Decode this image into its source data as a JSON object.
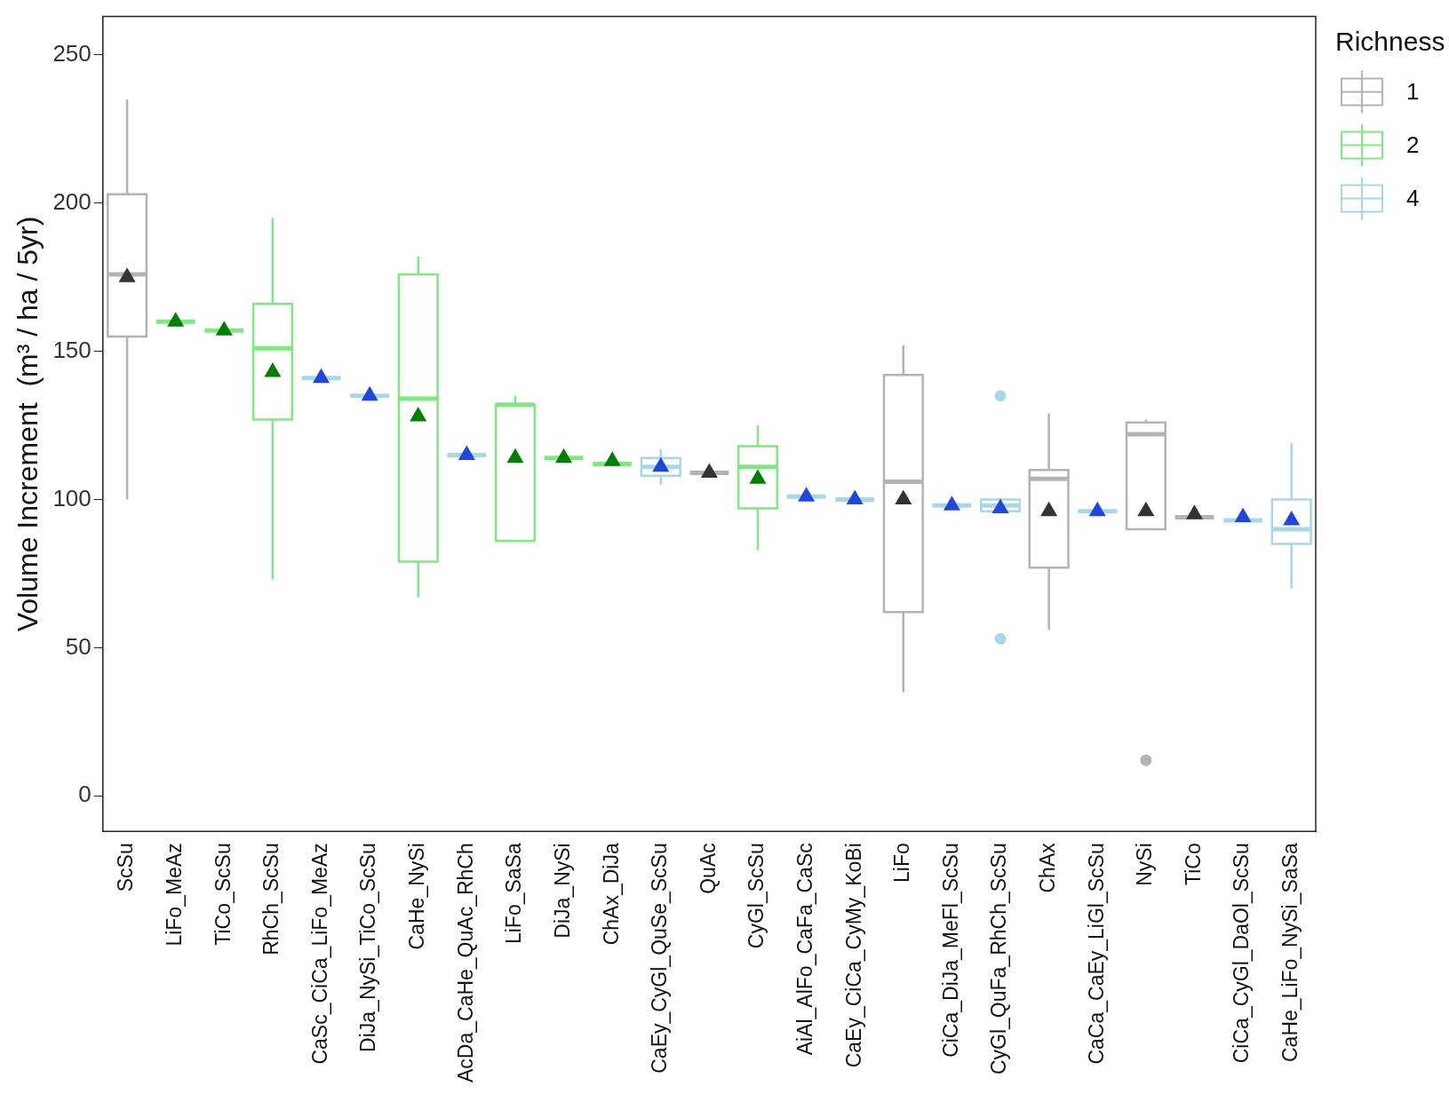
{
  "chart_data": {
    "type": "box",
    "ylabel": "Volume Increment  (m³ / ha / 5yr)",
    "legend_title": "Richness",
    "legend": "top right",
    "grid": false,
    "categories": [
      "ScSu",
      "LiFo_MeAz",
      "TiCo_ScSu",
      "RhCh_ScSu",
      "CaSc_CiCa_LiFo_MeAz",
      "DiJa_NySi_TiCo_ScSu",
      "CaHe_NySi",
      "AcDa_CaHe_QuAc_RhCh",
      "LiFo_SaSa",
      "DiJa_NySi",
      "ChAx_DiJa",
      "CaEy_CyGl_QuSe_ScSu",
      "QuAc",
      "CyGl_ScSu",
      "AiAl_AlFo_CaFa_CaSc",
      "CaEy_CiCa_CyMy_KoBi",
      "LiFo",
      "CiCa_DiJa_MeFl_ScSu",
      "CyGl_QuFa_RhCh_ScSu",
      "ChAx",
      "CaCa_CaEy_LiGl_ScSu",
      "NySi",
      "TiCo",
      "CiCa_CyGl_DaOl_ScSu",
      "CaHe_LiFo_NySi_SaSa"
    ],
    "ylim": [
      -12,
      263
    ],
    "yticks": [
      0,
      50,
      100,
      150,
      200,
      250
    ],
    "series": [
      {
        "name": "1",
        "color": "#b3b3b3",
        "boxes": [
          {
            "low": 100,
            "q1": 155,
            "median": 176,
            "q3": 203,
            "high": 235
          },
          null,
          null,
          null,
          null,
          null,
          null,
          null,
          null,
          null,
          null,
          null,
          {
            "low": 109,
            "q1": 109,
            "median": 109,
            "q3": 109,
            "high": 109
          },
          null,
          null,
          null,
          {
            "low": 35,
            "q1": 62,
            "median": 106,
            "q3": 142,
            "high": 152
          },
          null,
          null,
          {
            "low": 56,
            "q1": 77,
            "median": 107,
            "q3": 110,
            "high": 129
          },
          null,
          {
            "low": 90,
            "q1": 90,
            "median": 122,
            "q3": 126,
            "high": 127,
            "outliers": [
              12
            ]
          },
          {
            "low": 94,
            "q1": 94,
            "median": 94,
            "q3": 94,
            "high": 94
          },
          null,
          null
        ]
      },
      {
        "name": "2",
        "color": "#80e880",
        "boxes": [
          null,
          {
            "low": 160,
            "q1": 160,
            "median": 160,
            "q3": 160,
            "high": 160
          },
          {
            "low": 157,
            "q1": 157,
            "median": 157,
            "q3": 157,
            "high": 157
          },
          {
            "low": 73,
            "q1": 127,
            "median": 151,
            "q3": 166,
            "high": 195
          },
          null,
          null,
          {
            "low": 67,
            "q1": 79,
            "median": 134,
            "q3": 176,
            "high": 182
          },
          null,
          {
            "low": 86,
            "q1": 86,
            "median": 132,
            "q3": 132,
            "high": 135
          },
          {
            "low": 114,
            "q1": 114,
            "median": 114,
            "q3": 114,
            "high": 114
          },
          {
            "low": 112,
            "q1": 112,
            "median": 112,
            "q3": 112,
            "high": 112
          },
          null,
          null,
          {
            "low": 83,
            "q1": 97,
            "median": 111,
            "q3": 118,
            "high": 125
          },
          null,
          null,
          null,
          null,
          null,
          null,
          null,
          null,
          null,
          null,
          null
        ]
      },
      {
        "name": "4",
        "color": "#a8d8e8",
        "boxes": [
          null,
          null,
          null,
          null,
          {
            "low": 141,
            "q1": 141,
            "median": 141,
            "q3": 141,
            "high": 141
          },
          {
            "low": 135,
            "q1": 135,
            "median": 135,
            "q3": 135,
            "high": 135
          },
          null,
          {
            "low": 115,
            "q1": 115,
            "median": 115,
            "q3": 115,
            "high": 115
          },
          null,
          null,
          null,
          {
            "low": 105,
            "q1": 108,
            "median": 111,
            "q3": 114,
            "high": 117
          },
          null,
          null,
          {
            "low": 101,
            "q1": 101,
            "median": 101,
            "q3": 101,
            "high": 101
          },
          {
            "low": 100,
            "q1": 100,
            "median": 100,
            "q3": 100,
            "high": 100
          },
          null,
          {
            "low": 98,
            "q1": 98,
            "median": 98,
            "q3": 98,
            "high": 98
          },
          {
            "low": 96,
            "q1": 96,
            "median": 98,
            "q3": 100,
            "high": 100,
            "outliers": [
              135,
              53
            ]
          },
          null,
          {
            "low": 96,
            "q1": 96,
            "median": 96,
            "q3": 96,
            "high": 96
          },
          null,
          null,
          {
            "low": 93,
            "q1": 93,
            "median": 93,
            "q3": 93,
            "high": 93
          },
          {
            "low": 70,
            "q1": 85,
            "median": 90,
            "q3": 100,
            "high": 119
          }
        ]
      },
      {
        "type": "scatter",
        "marker": "triangle",
        "color": "#333333",
        "values": [
          175,
          null,
          null,
          null,
          null,
          null,
          null,
          null,
          null,
          null,
          null,
          null,
          109,
          null,
          null,
          null,
          100,
          null,
          null,
          96,
          null,
          96,
          95,
          null,
          null
        ]
      },
      {
        "type": "scatter",
        "marker": "triangle",
        "color": "#007f00",
        "values": [
          null,
          160,
          157,
          143,
          null,
          null,
          128,
          null,
          114,
          114,
          113,
          null,
          null,
          107,
          null,
          null,
          null,
          null,
          null,
          null,
          null,
          null,
          null,
          null,
          null
        ]
      },
      {
        "type": "scatter",
        "marker": "triangle",
        "color": "#2046e0",
        "values": [
          null,
          null,
          null,
          null,
          141,
          135,
          null,
          115,
          null,
          null,
          null,
          111,
          null,
          null,
          101,
          100,
          null,
          98,
          97,
          null,
          96,
          null,
          null,
          94,
          93
        ]
      }
    ]
  }
}
